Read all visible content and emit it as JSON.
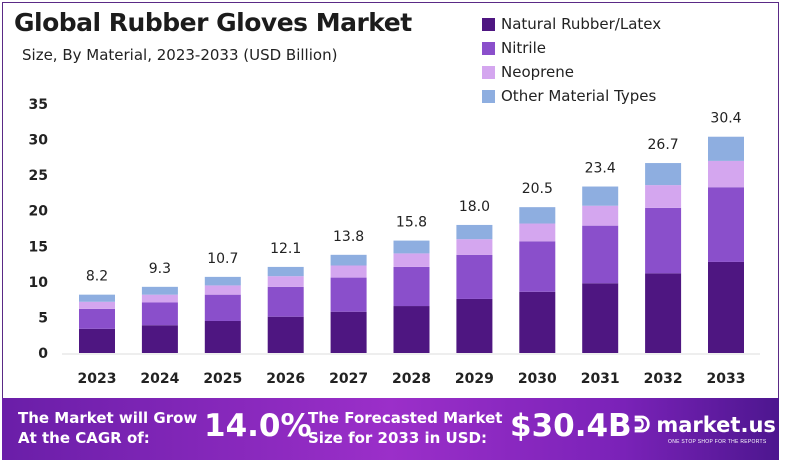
{
  "chart_data": {
    "type": "bar",
    "stacked": true,
    "title": "Global Rubber Gloves Market",
    "subtitle": "Size, By Material, 2023-2033 (USD Billion)",
    "categories": [
      "2023",
      "2024",
      "2025",
      "2026",
      "2027",
      "2028",
      "2029",
      "2030",
      "2031",
      "2032",
      "2033"
    ],
    "series": [
      {
        "name": "Natural Rubber/Latex",
        "color": "#4e1681",
        "values": [
          3.4,
          3.9,
          4.5,
          5.1,
          5.8,
          6.6,
          7.6,
          8.6,
          9.8,
          11.2,
          12.8
        ]
      },
      {
        "name": "Nitrile",
        "color": "#8a4fcb",
        "values": [
          2.8,
          3.2,
          3.7,
          4.2,
          4.8,
          5.5,
          6.2,
          7.1,
          8.1,
          9.2,
          10.5
        ]
      },
      {
        "name": "Neoprene",
        "color": "#d4a6ef",
        "values": [
          1.0,
          1.1,
          1.3,
          1.5,
          1.7,
          1.9,
          2.2,
          2.5,
          2.8,
          3.2,
          3.7
        ]
      },
      {
        "name": "Other Material Types",
        "color": "#8eaee0",
        "values": [
          1.0,
          1.1,
          1.2,
          1.3,
          1.5,
          1.8,
          2.0,
          2.3,
          2.7,
          3.1,
          3.4
        ]
      }
    ],
    "totals": [
      "8.2",
      "9.3",
      "10.7",
      "12.1",
      "13.8",
      "15.8",
      "18.0",
      "20.5",
      "23.4",
      "26.7",
      "30.4"
    ],
    "yticks": [
      0,
      5,
      10,
      15,
      20,
      25,
      30,
      35
    ],
    "ylim": [
      0,
      35
    ],
    "grid": false,
    "legend": "top-right"
  },
  "footer": {
    "cagr_label_1": "The Market will Grow",
    "cagr_label_2": "At the CAGR of:",
    "cagr_value": "14.0%",
    "forecast_label_1": "The Forecasted Market",
    "forecast_label_2": "Size for 2033 in USD:",
    "forecast_value": "$30.4B",
    "brand": "market.us",
    "brand_tagline": "ONE STOP SHOP FOR THE REPORTS"
  }
}
